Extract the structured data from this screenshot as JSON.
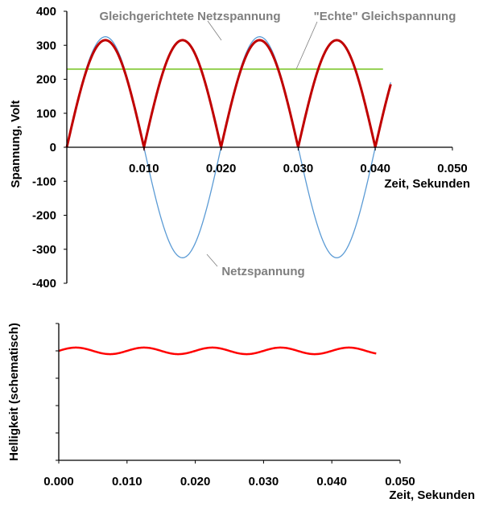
{
  "chart_data": [
    {
      "type": "line",
      "title": "",
      "xlabel": "Zeit, Sekunden",
      "ylabel": "Spannung, Volt",
      "xlim": [
        0,
        0.05
      ],
      "ylim": [
        -400,
        400
      ],
      "xticks": [
        "0.010",
        "0.020",
        "0.030",
        "0.040",
        "0.050"
      ],
      "yticks": [
        "400",
        "300",
        "200",
        "100",
        "0",
        "-100",
        "-200",
        "-300",
        "-400"
      ],
      "grid": false,
      "series": [
        {
          "name": "Netzspannung",
          "kind": "sine",
          "amplitude": 325,
          "frequency_hz": 50,
          "t_end": 0.042,
          "color": "#5b9bd5"
        },
        {
          "name": "Gleichgerichtete Netzspannung",
          "kind": "rectified-sine",
          "amplitude": 315,
          "frequency_hz": 50,
          "t_end": 0.042,
          "color": "#c00000"
        },
        {
          "name": "\"Echte\" Gleichspannung",
          "kind": "constant",
          "value": 230,
          "t_end": 0.041,
          "color": "#92d050"
        }
      ],
      "annotations": [
        "Gleichgerichtete Netzspannung",
        "\"Echte\" Gleichspannung",
        "Netzspannung"
      ]
    },
    {
      "type": "line",
      "title": "",
      "xlabel": "Zeit, Sekunden",
      "ylabel": "Helligkeit (schematisch)",
      "xlim": [
        0,
        0.05
      ],
      "ylim": [
        0,
        5
      ],
      "xticks": [
        "0.000",
        "0.010",
        "0.020",
        "0.030",
        "0.040",
        "0.050"
      ],
      "grid": false,
      "series": [
        {
          "name": "Helligkeit",
          "kind": "ripple",
          "mean": 4,
          "ripple_amplitude": 0.12,
          "frequency_hz": 100,
          "t_end": 0.0465,
          "color": "#ff0000"
        }
      ]
    }
  ]
}
